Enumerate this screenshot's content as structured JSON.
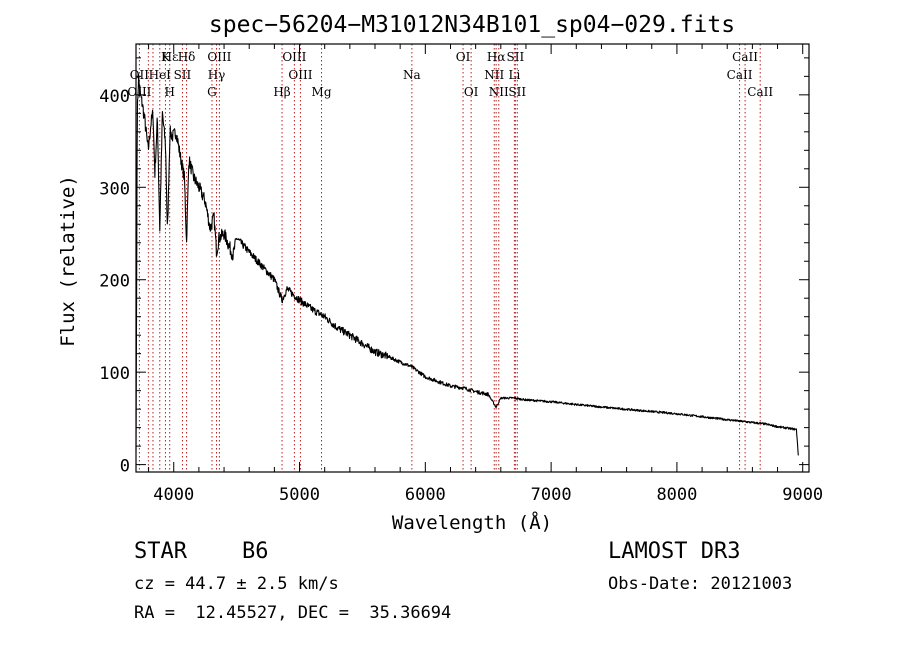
{
  "chart_data": {
    "type": "line",
    "title": "spec−56204−M31012N34B101_sp04−029.fits",
    "xlabel": "Wavelength (Å)",
    "ylabel": "Flux (relative)",
    "xlim": [
      3700,
      9050
    ],
    "ylim": [
      -8,
      455
    ],
    "xticks": [
      4000,
      5000,
      6000,
      7000,
      8000,
      9000
    ],
    "yticks": [
      0,
      100,
      200,
      300,
      400
    ],
    "grid": false,
    "series": [
      {
        "name": "spectrum",
        "x": [
          3700,
          3710,
          3720,
          3735,
          3750,
          3770,
          3797,
          3820,
          3835,
          3850,
          3870,
          3889,
          3910,
          3935,
          3950,
          3970,
          3990,
          4020,
          4050,
          4085,
          4102,
          4120,
          4160,
          4200,
          4250,
          4290,
          4320,
          4340,
          4360,
          4400,
          4471,
          4500,
          4600,
          4700,
          4800,
          4861,
          4900,
          5000,
          5100,
          5200,
          5300,
          5400,
          5500,
          5600,
          5700,
          5800,
          5890,
          5950,
          6000,
          6200,
          6300,
          6400,
          6500,
          6563,
          6600,
          6700,
          6800,
          7000,
          7200,
          7500,
          8000,
          8500,
          8700,
          8800,
          8900,
          8950,
          8965
        ],
        "y": [
          15,
          380,
          420,
          400,
          390,
          372,
          340,
          370,
          380,
          315,
          375,
          255,
          380,
          345,
          250,
          360,
          355,
          360,
          335,
          310,
          240,
          330,
          310,
          300,
          285,
          255,
          268,
          230,
          245,
          250,
          226,
          245,
          230,
          215,
          200,
          178,
          190,
          178,
          168,
          160,
          148,
          140,
          131,
          122,
          117,
          111,
          106,
          100,
          95,
          85,
          83,
          79,
          76,
          62,
          72,
          72,
          70,
          68,
          65,
          61,
          55,
          47,
          44,
          41,
          39,
          38,
          10
        ]
      }
    ],
    "line_marks": [
      {
        "label": "Hε",
        "wavelength": 3970,
        "row": 0
      },
      {
        "label": "K",
        "wavelength": 3934,
        "row": 0
      },
      {
        "label": "Hδ",
        "wavelength": 4102,
        "row": 0
      },
      {
        "label": "OIII",
        "wavelength": 4363,
        "row": 0
      },
      {
        "label": "OIII",
        "wavelength": 4959,
        "row": 0
      },
      {
        "label": "OI",
        "wavelength": 6300,
        "row": 0
      },
      {
        "label": "Hα",
        "wavelength": 6563,
        "row": 0
      },
      {
        "label": "SII",
        "wavelength": 6716,
        "row": 0
      },
      {
        "label": "CaII",
        "wavelength": 8542,
        "row": 0
      },
      {
        "label": "OII",
        "wavelength": 3727,
        "row": 1
      },
      {
        "label": "HeI",
        "wavelength": 3889,
        "row": 1
      },
      {
        "label": "SII",
        "wavelength": 4069,
        "row": 1
      },
      {
        "label": "Hγ",
        "wavelength": 4340,
        "row": 1
      },
      {
        "label": "OIII",
        "wavelength": 5007,
        "row": 1
      },
      {
        "label": "Na",
        "wavelength": 5893,
        "row": 1
      },
      {
        "label": "NII",
        "wavelength": 6548,
        "row": 1
      },
      {
        "label": "Li",
        "wavelength": 6708,
        "row": 1
      },
      {
        "label": "CaII",
        "wavelength": 8498,
        "row": 1
      },
      {
        "label": "OIII",
        "wavelength": 3727,
        "row": 2
      },
      {
        "label": "H",
        "wavelength": 3968,
        "row": 2
      },
      {
        "label": "G",
        "wavelength": 4304,
        "row": 2
      },
      {
        "label": "Hβ",
        "wavelength": 4861,
        "row": 2
      },
      {
        "label": "Mg",
        "wavelength": 5175,
        "row": 2
      },
      {
        "label": "OI",
        "wavelength": 6364,
        "row": 2
      },
      {
        "label": "NII",
        "wavelength": 6584,
        "row": 2
      },
      {
        "label": "SII",
        "wavelength": 6731,
        "row": 2
      },
      {
        "label": "CaII",
        "wavelength": 8662,
        "row": 2
      }
    ],
    "line_mark_positions": [
      3727,
      3798,
      3835,
      3889,
      3934,
      3968,
      4069,
      4102,
      4304,
      4340,
      4363,
      4861,
      4959,
      5007,
      5175,
      5893,
      6300,
      6364,
      6548,
      6563,
      6584,
      6708,
      6716,
      6731,
      8498,
      8542,
      8662
    ]
  },
  "info": {
    "object_class": "STAR",
    "subclass": "B6",
    "survey": "LAMOST DR3",
    "redshift": "cz = 44.7 ± 2.5 km/s",
    "obs_date": "Obs-Date: 20121003",
    "coords": "RA =  12.45527, DEC =  35.36694"
  },
  "colors": {
    "ink": "#000000",
    "line_marks": "#b22222",
    "background": "#ffffff"
  }
}
